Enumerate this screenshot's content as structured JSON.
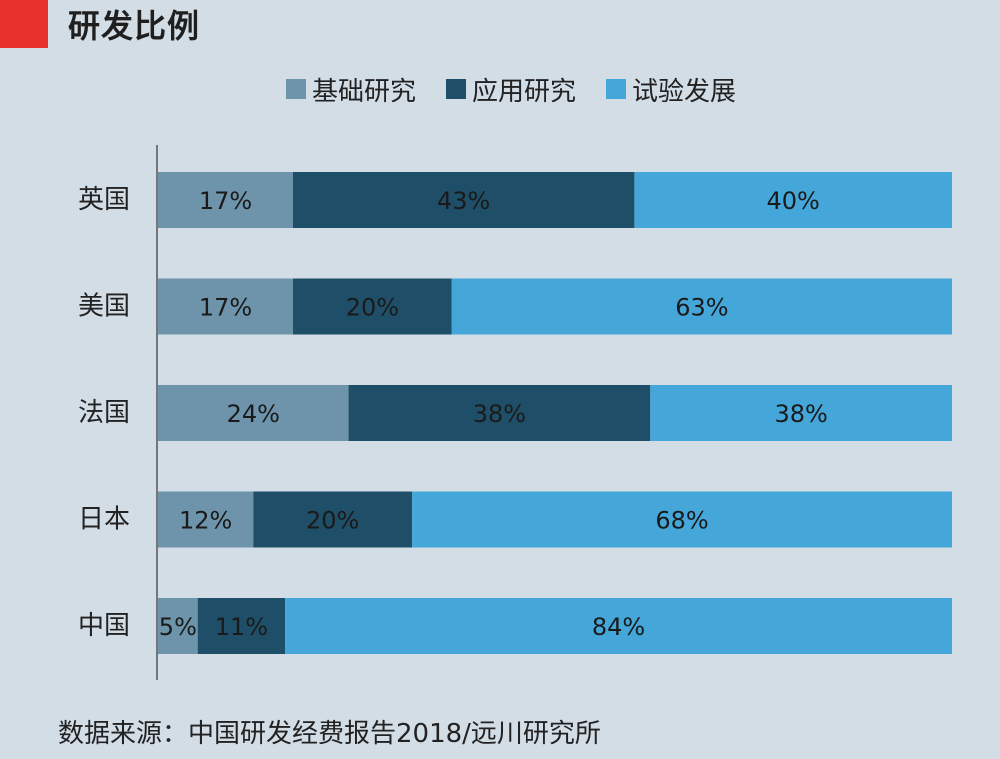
{
  "header": {
    "title": "研发比例"
  },
  "legend": [
    {
      "label": "基础研究",
      "color": "#6d94aa"
    },
    {
      "label": "应用研究",
      "color": "#1f4f68"
    },
    {
      "label": "试验发展",
      "color": "#45a6d9"
    }
  ],
  "chart_data": {
    "type": "bar",
    "orientation": "horizontal",
    "stacked": true,
    "categories": [
      "英国",
      "美国",
      "法国",
      "日本",
      "中国"
    ],
    "series": [
      {
        "name": "基础研究",
        "values": [
          17,
          17,
          24,
          12,
          5
        ],
        "labels": [
          "17%",
          "17%",
          "24%",
          "12%",
          "5%"
        ],
        "color": "#6d94aa"
      },
      {
        "name": "应用研究",
        "values": [
          43,
          20,
          38,
          20,
          11
        ],
        "labels": [
          "43%",
          "20%",
          "38%",
          "20%",
          "11%"
        ],
        "color": "#1f4f68"
      },
      {
        "name": "试验发展",
        "values": [
          40,
          63,
          38,
          68,
          84
        ],
        "labels": [
          "40%",
          "63%",
          "38%",
          "68%",
          "84%"
        ],
        "color": "#45a6d9"
      }
    ],
    "title": "研发比例",
    "xlabel": "",
    "ylabel": "",
    "xlim": [
      0,
      100
    ],
    "grid": false,
    "legend_position": "top"
  },
  "footer": {
    "source": "数据来源：中国研发经费报告2018/远川研究所"
  }
}
